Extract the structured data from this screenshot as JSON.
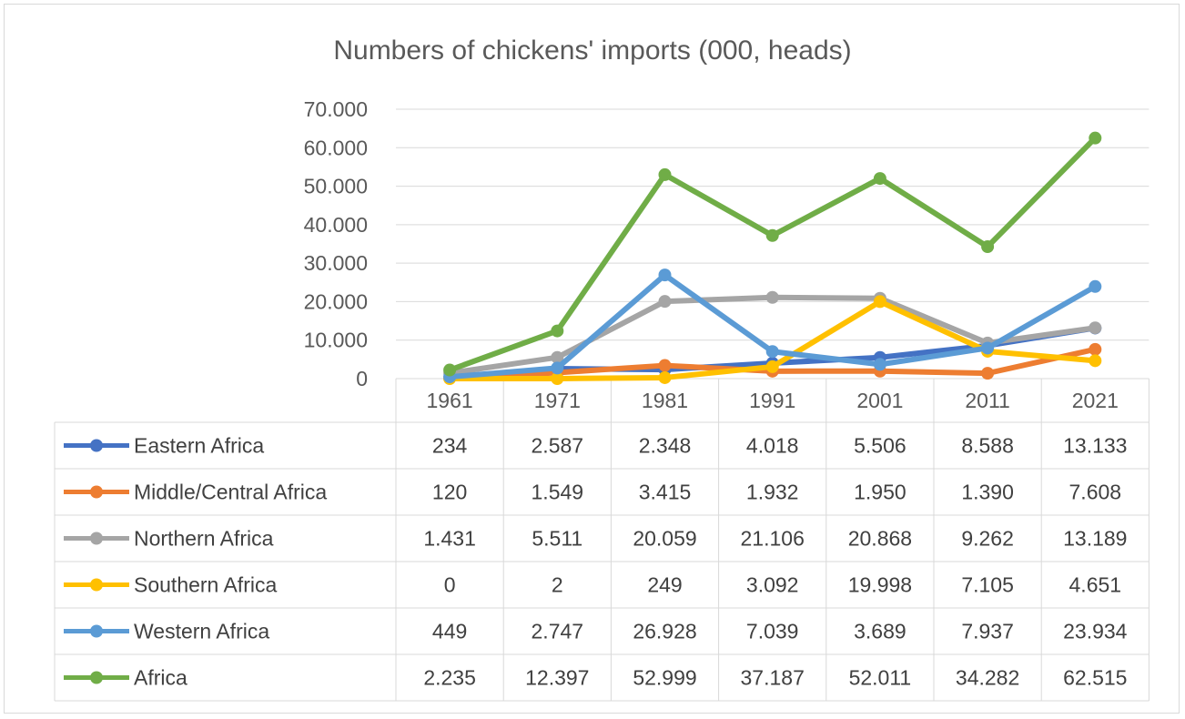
{
  "chart_data": {
    "type": "line",
    "title": "Numbers of chickens' imports (000, heads)",
    "xlabel": "",
    "ylabel": "",
    "categories": [
      "1961",
      "1971",
      "1981",
      "1991",
      "2001",
      "2011",
      "2021"
    ],
    "ylim": [
      0,
      70000
    ],
    "y_ticks": [
      {
        "value": 0,
        "label": "0"
      },
      {
        "value": 10000,
        "label": "10.000"
      },
      {
        "value": 20000,
        "label": "20.000"
      },
      {
        "value": 30000,
        "label": "30.000"
      },
      {
        "value": 40000,
        "label": "40.000"
      },
      {
        "value": 50000,
        "label": "50.000"
      },
      {
        "value": 60000,
        "label": "60.000"
      },
      {
        "value": 70000,
        "label": "70.000"
      }
    ],
    "grid": true,
    "legend": "data-table",
    "series": [
      {
        "name": "Eastern Africa",
        "color": "#4472C4",
        "values": [
          234,
          2587,
          2348,
          4018,
          5506,
          8588,
          13133
        ],
        "labels": [
          "234",
          "2.587",
          "2.348",
          "4.018",
          "5.506",
          "8.588",
          "13.133"
        ]
      },
      {
        "name": "Middle/Central Africa",
        "color": "#ED7D31",
        "values": [
          120,
          1549,
          3415,
          1932,
          1950,
          1390,
          7608
        ],
        "labels": [
          "120",
          "1.549",
          "3.415",
          "1.932",
          "1.950",
          "1.390",
          "7.608"
        ]
      },
      {
        "name": "Northern Africa",
        "color": "#A5A5A5",
        "values": [
          1431,
          5511,
          20059,
          21106,
          20868,
          9262,
          13189
        ],
        "labels": [
          "1.431",
          "5.511",
          "20.059",
          "21.106",
          "20.868",
          "9.262",
          "13.189"
        ]
      },
      {
        "name": "Southern Africa",
        "color": "#FFC000",
        "values": [
          0,
          2,
          249,
          3092,
          19998,
          7105,
          4651
        ],
        "labels": [
          "0",
          "2",
          "249",
          "3.092",
          "19.998",
          "7.105",
          "4.651"
        ]
      },
      {
        "name": "Western Africa",
        "color": "#5B9BD5",
        "values": [
          449,
          2747,
          26928,
          7039,
          3689,
          7937,
          23934
        ],
        "labels": [
          "449",
          "2.747",
          "26.928",
          "7.039",
          "3.689",
          "7.937",
          "23.934"
        ]
      },
      {
        "name": "Africa",
        "color": "#70AD47",
        "values": [
          2235,
          12397,
          52999,
          37187,
          52011,
          34282,
          62515
        ],
        "labels": [
          "2.235",
          "12.397",
          "52.999",
          "37.187",
          "52.011",
          "34.282",
          "62.515"
        ]
      }
    ]
  }
}
